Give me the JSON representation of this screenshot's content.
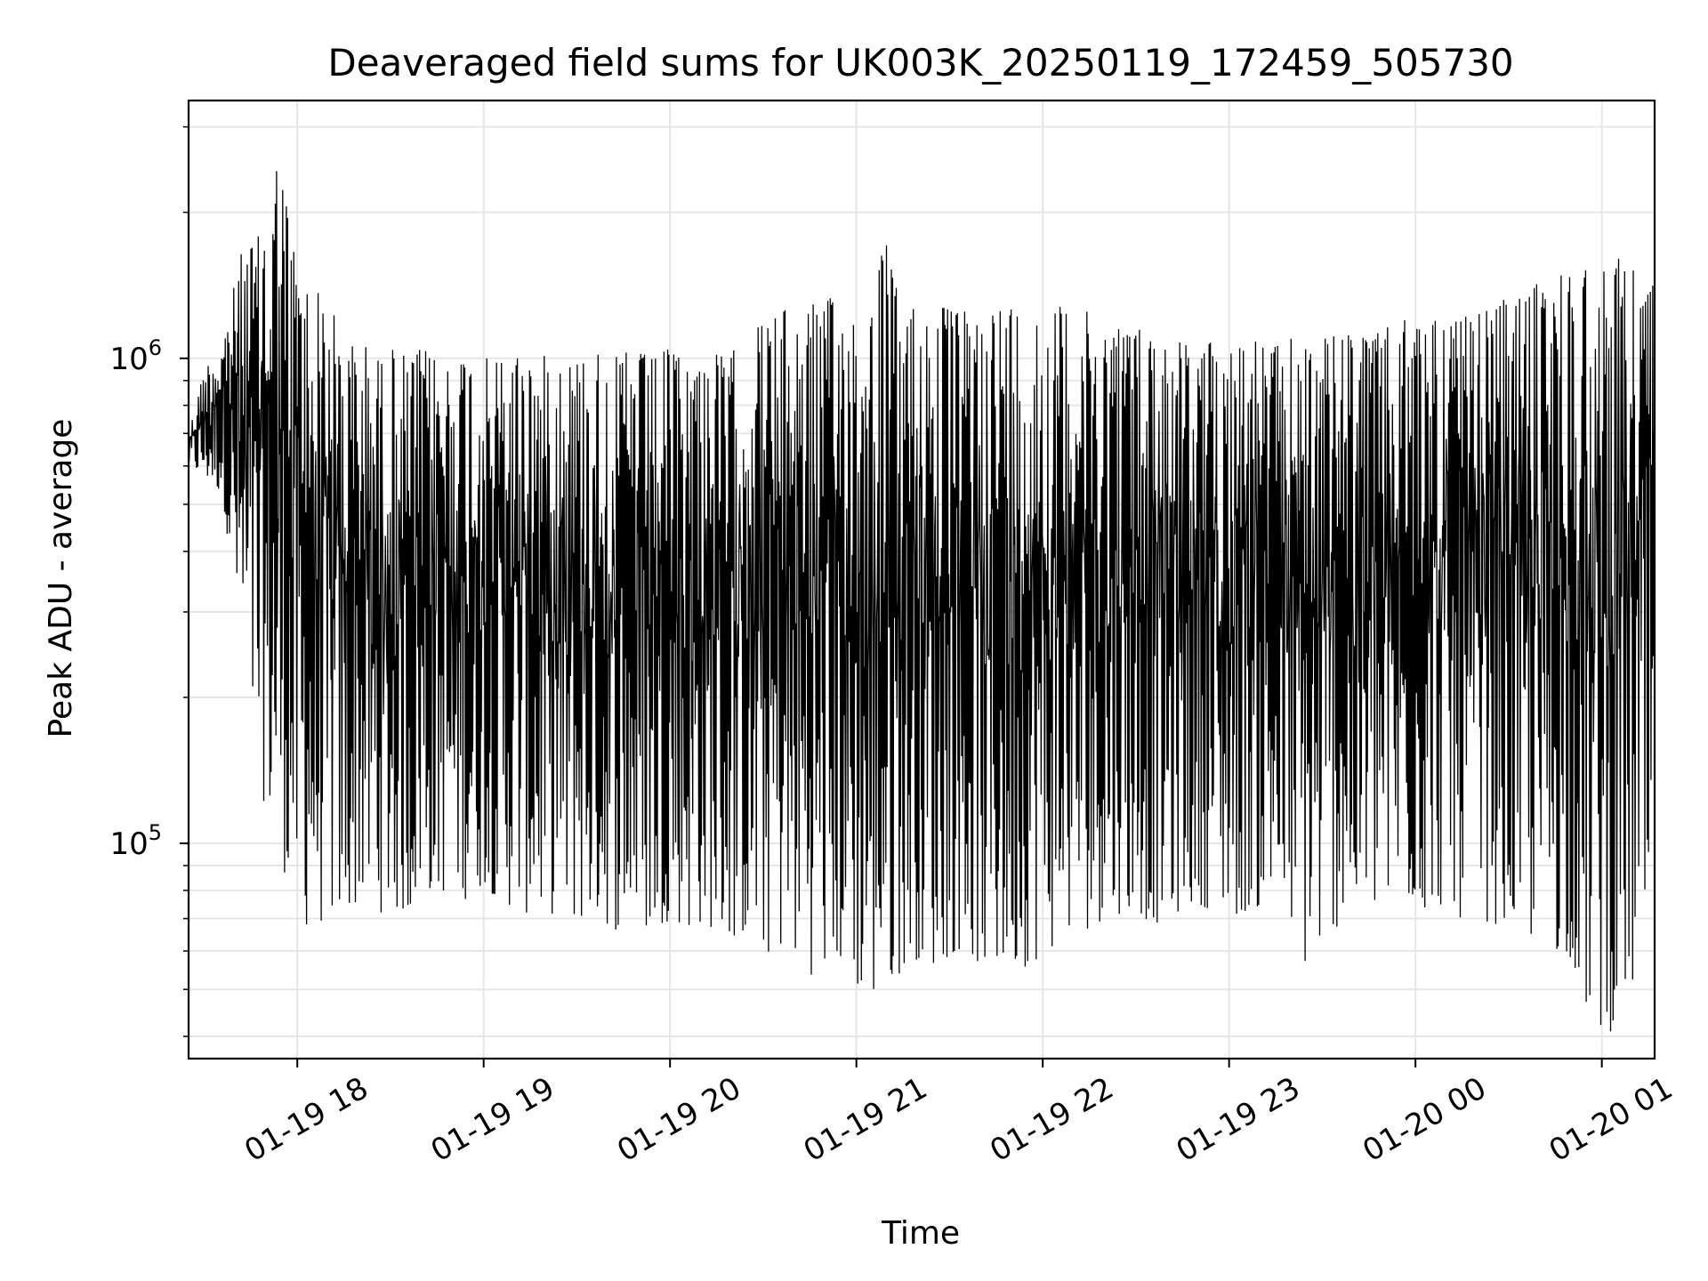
{
  "chart_data": {
    "type": "line",
    "title": "Deaveraged field sums for UK003K_20250119_172459_505730",
    "xlabel": "Time",
    "ylabel": "Peak ADU - average",
    "yscale": "log",
    "grid": true,
    "line_color": "#000000",
    "grid_color": "#e6e6e6",
    "xlim": [
      "2025-01-19 17:25",
      "2025-01-20 01:17"
    ],
    "ylim": [
      36000,
      3400000
    ],
    "x_ticks": [
      {
        "value": "2025-01-19 18:00",
        "label": "01-19 18"
      },
      {
        "value": "2025-01-19 19:00",
        "label": "01-19 19"
      },
      {
        "value": "2025-01-19 20:00",
        "label": "01-19 20"
      },
      {
        "value": "2025-01-19 21:00",
        "label": "01-19 21"
      },
      {
        "value": "2025-01-19 22:00",
        "label": "01-19 22"
      },
      {
        "value": "2025-01-19 23:00",
        "label": "01-19 23"
      },
      {
        "value": "2025-01-20 00:00",
        "label": "01-20 00"
      },
      {
        "value": "2025-01-20 01:00",
        "label": "01-20 01"
      }
    ],
    "y_ticks": [
      {
        "value": 100000,
        "base": "10",
        "exp": "5"
      },
      {
        "value": 1000000,
        "base": "10",
        "exp": "6"
      }
    ],
    "series": [
      {
        "x": [
          "2025-01-19 17:25",
          "2025-01-19 17:30",
          "2025-01-19 17:36",
          "2025-01-19 17:42",
          "2025-01-19 17:48",
          "2025-01-19 17:54",
          "2025-01-19 17:59",
          "2025-01-19 18:04",
          "2025-01-19 18:10",
          "2025-01-19 18:15",
          "2025-01-19 18:20",
          "2025-01-19 18:26",
          "2025-01-19 18:31",
          "2025-01-19 18:36",
          "2025-01-19 18:40",
          "2025-01-19 18:45",
          "2025-01-19 18:50",
          "2025-01-19 18:55",
          "2025-01-19 19:00",
          "2025-01-19 19:06",
          "2025-01-19 19:12",
          "2025-01-19 19:18",
          "2025-01-19 19:24",
          "2025-01-19 19:30",
          "2025-01-19 19:36",
          "2025-01-19 19:42",
          "2025-01-19 19:48",
          "2025-01-19 19:54",
          "2025-01-19 20:00",
          "2025-01-19 20:06",
          "2025-01-19 20:12",
          "2025-01-19 20:18",
          "2025-01-19 20:24",
          "2025-01-19 20:30",
          "2025-01-19 20:36",
          "2025-01-19 20:42",
          "2025-01-19 20:48",
          "2025-01-19 20:54",
          "2025-01-19 21:00",
          "2025-01-19 21:04",
          "2025-01-19 21:09",
          "2025-01-19 21:14",
          "2025-01-19 21:20",
          "2025-01-19 21:26",
          "2025-01-19 21:32",
          "2025-01-19 21:38",
          "2025-01-19 21:44",
          "2025-01-19 21:50",
          "2025-01-19 21:56",
          "2025-01-19 22:02",
          "2025-01-19 22:08",
          "2025-01-19 22:14",
          "2025-01-19 22:20",
          "2025-01-19 22:26",
          "2025-01-19 22:32",
          "2025-01-19 22:38",
          "2025-01-19 22:44",
          "2025-01-19 22:50",
          "2025-01-19 22:56",
          "2025-01-19 23:02",
          "2025-01-19 23:08",
          "2025-01-19 23:14",
          "2025-01-19 23:20",
          "2025-01-19 23:26",
          "2025-01-19 23:32",
          "2025-01-19 23:38",
          "2025-01-19 23:44",
          "2025-01-19 23:50",
          "2025-01-19 23:56",
          "2025-01-20 00:02",
          "2025-01-20 00:08",
          "2025-01-20 00:14",
          "2025-01-20 00:20",
          "2025-01-20 00:26",
          "2025-01-20 00:32",
          "2025-01-20 00:38",
          "2025-01-20 00:44",
          "2025-01-20 00:50",
          "2025-01-20 00:56",
          "2025-01-20 01:02",
          "2025-01-20 01:08",
          "2025-01-20 01:14"
        ],
        "peaks": [
          700000,
          950000,
          1100000,
          1650000,
          1800000,
          2700000,
          1700000,
          1400000,
          1350000,
          1050000,
          1100000,
          1000000,
          1050000,
          1000000,
          1050000,
          1000000,
          1000000,
          1050000,
          1000000,
          1000000,
          1050000,
          1000000,
          1050000,
          1000000,
          1050000,
          1000000,
          1050000,
          1000000,
          1050000,
          1000000,
          1050000,
          1000000,
          1100000,
          1200000,
          1250000,
          1300000,
          1300000,
          1350000,
          1300000,
          1250000,
          1800000,
          1300000,
          1300000,
          1300000,
          1250000,
          1250000,
          1300000,
          1300000,
          1250000,
          1250000,
          1300000,
          1250000,
          1200000,
          1200000,
          1150000,
          1150000,
          1100000,
          1050000,
          1100000,
          1100000,
          1100000,
          1050000,
          1100000,
          1100000,
          1100000,
          1150000,
          1100000,
          1150000,
          1200000,
          1200000,
          1250000,
          1200000,
          1250000,
          1300000,
          1350000,
          1400000,
          1550000,
          1500000,
          1600000,
          1550000,
          1650000,
          1450000
        ],
        "troughs": [
          600000,
          560000,
          520000,
          240000,
          130000,
          95000,
          75000,
          65000,
          70000,
          68000,
          76000,
          72000,
          72000,
          70000,
          80000,
          78000,
          80000,
          76000,
          82000,
          75000,
          72000,
          70000,
          72000,
          68000,
          70000,
          66000,
          68000,
          64000,
          70000,
          66000,
          68000,
          62000,
          64000,
          58000,
          60000,
          56000,
          52000,
          56000,
          50000,
          46000,
          48000,
          54000,
          58000,
          55000,
          60000,
          57000,
          52000,
          55000,
          56000,
          60000,
          64000,
          66000,
          70000,
          72000,
          70000,
          68000,
          72000,
          75000,
          72000,
          70000,
          74000,
          70000,
          66000,
          52000,
          66000,
          68000,
          70000,
          72000,
          74000,
          72000,
          74000,
          70000,
          70000,
          68000,
          66000,
          62000,
          60000,
          58000,
          42000,
          40000,
          47000,
          52000
        ]
      }
    ]
  }
}
